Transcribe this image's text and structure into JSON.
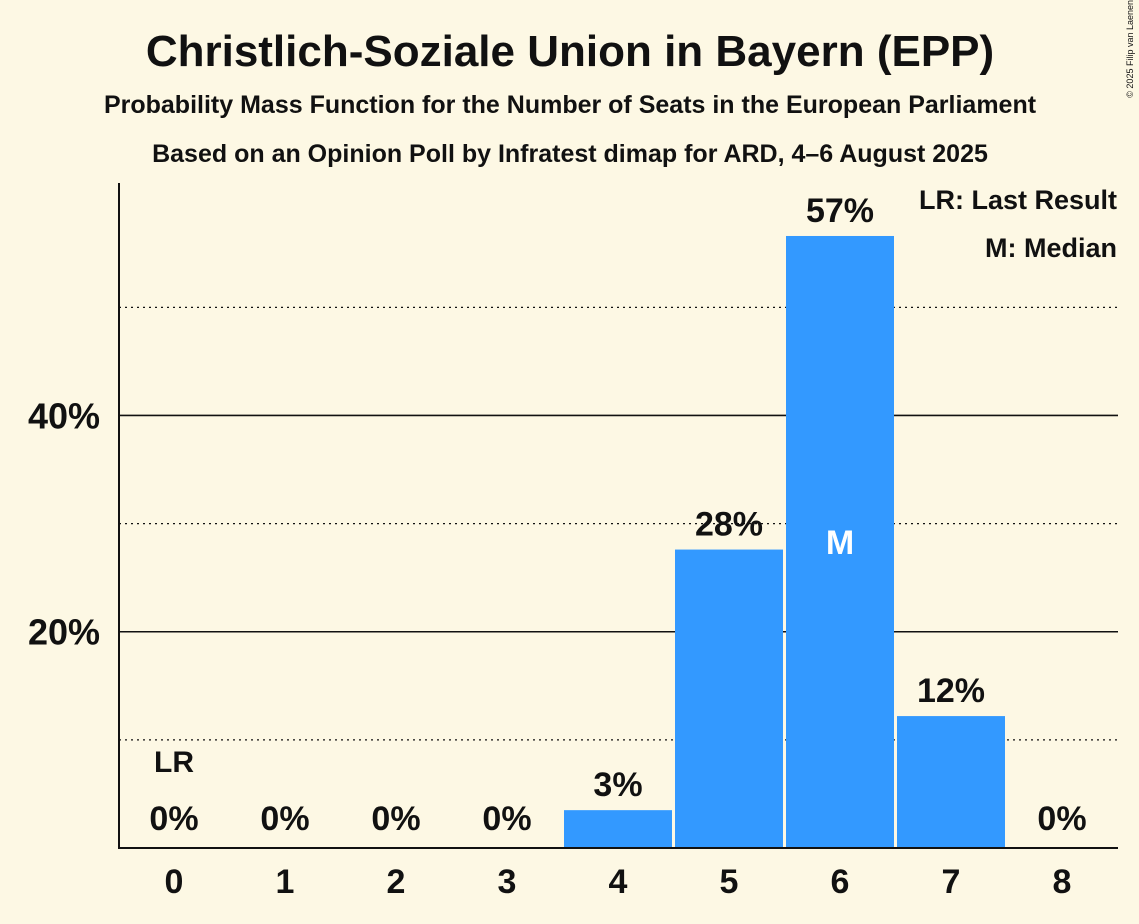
{
  "chart_data": {
    "type": "bar",
    "title": "Christlich-Soziale Union in Bayern (EPP)",
    "subtitle": "Probability Mass Function for the Number of Seats in the European Parliament",
    "subtitle2": "Based on an Opinion Poll by Infratest dimap for ARD, 4–6 August 2025",
    "copyright": "© 2025 Filip van Laenen",
    "categories": [
      "0",
      "1",
      "2",
      "3",
      "4",
      "5",
      "6",
      "7",
      "8"
    ],
    "values": [
      0,
      0,
      0,
      0,
      3.5,
      27.6,
      56.6,
      12.2,
      0
    ],
    "value_labels": [
      "0%",
      "0%",
      "0%",
      "0%",
      "3%",
      "28%",
      "57%",
      "12%",
      "0%"
    ],
    "ylim": [
      0,
      61.5
    ],
    "y_ticks": [
      {
        "value": 20,
        "label": "20%"
      },
      {
        "value": 40,
        "label": "40%"
      }
    ],
    "y_minor_gridlines": [
      10,
      30,
      50
    ],
    "last_result_index": 0,
    "last_result_label": "LR",
    "median_index": 6,
    "median_label": "M",
    "legend": {
      "position": "top-right",
      "items": [
        "LR: Last Result",
        "M: Median"
      ]
    },
    "colors": {
      "bar": "#3399ff",
      "background": "#fdf8e4",
      "text": "#111111",
      "median_text": "#ffffff"
    }
  }
}
